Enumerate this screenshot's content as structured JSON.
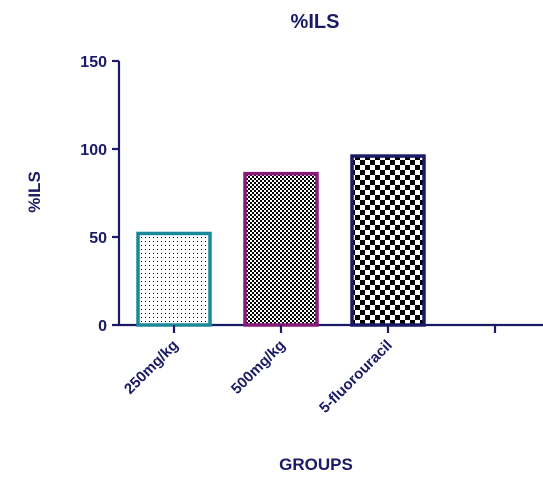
{
  "chart_data": {
    "type": "bar",
    "title": "%ILS",
    "xlabel": "GROUPS",
    "ylabel": "%ILS",
    "ylim": [
      0,
      150
    ],
    "yticks": [
      0,
      50,
      100,
      150
    ],
    "grid": false,
    "categories": [
      "250mg/kg",
      "500mg/kg",
      "5-fluorouracil"
    ],
    "values": [
      52,
      86,
      96
    ],
    "bar_styles": [
      {
        "border": "#1a8a9a",
        "pattern": "fine-dots"
      },
      {
        "border": "#8a1a7a",
        "pattern": "dense-check"
      },
      {
        "border": "#1a1a66",
        "pattern": "checkerboard"
      }
    ]
  }
}
